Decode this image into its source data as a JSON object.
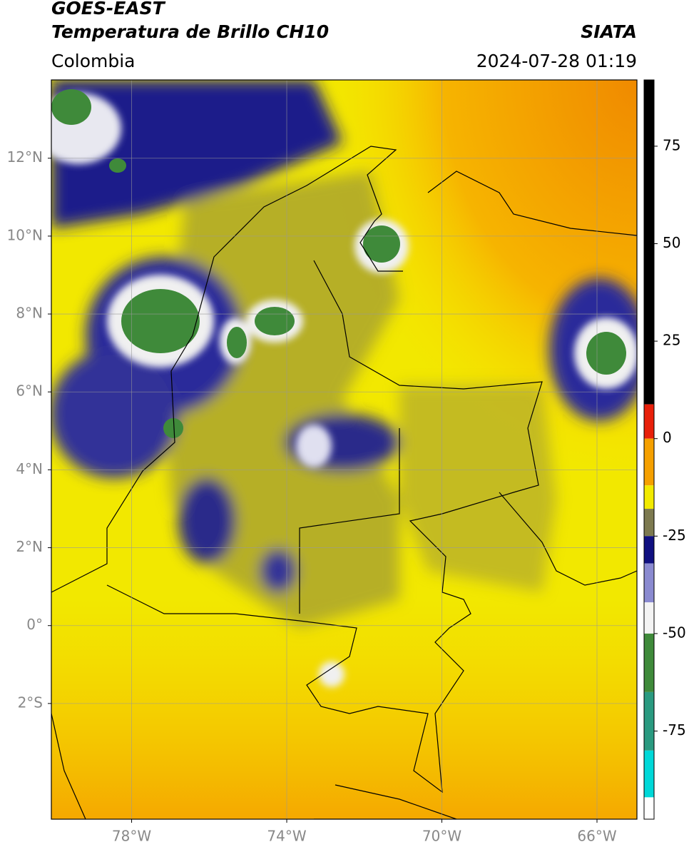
{
  "header": {
    "title": "GOES-EAST",
    "subtitle": "Temperatura de Brillo CH10",
    "source": "SIATA",
    "region": "Colombia",
    "timestamp": "2024-07-28 01:19"
  },
  "map": {
    "xlim": [
      -80.07,
      -64.97
    ],
    "ylim": [
      -4.97,
      14.01
    ],
    "xticks": [
      {
        "value": -78,
        "label": "78°W"
      },
      {
        "value": -74,
        "label": "74°W"
      },
      {
        "value": -70,
        "label": "70°W"
      },
      {
        "value": -66,
        "label": "66°W"
      }
    ],
    "yticks": [
      {
        "value": 12,
        "label": "12°N"
      },
      {
        "value": 10,
        "label": "10°N"
      },
      {
        "value": 8,
        "label": "8°N"
      },
      {
        "value": 6,
        "label": "6°N"
      },
      {
        "value": 4,
        "label": "4°N"
      },
      {
        "value": 2,
        "label": "2°N"
      },
      {
        "value": 0,
        "label": "0°"
      },
      {
        "value": -2,
        "label": "2°S"
      }
    ],
    "grid": true
  },
  "colorbar": {
    "lim": [
      -97.6,
      92
    ],
    "ticks": [
      75,
      50,
      25,
      0,
      -25,
      -50,
      -75
    ],
    "stops": [
      {
        "from": 8.8,
        "to": 92,
        "color": "#000000"
      },
      {
        "from": 0,
        "to": 8.8,
        "color": "#e8200a"
      },
      {
        "from": -12,
        "to": 0,
        "color": "#f5a000"
      },
      {
        "from": -18,
        "to": -12,
        "color": "#f2ea00"
      },
      {
        "from": -25,
        "to": -18,
        "color": "#7d7a50"
      },
      {
        "from": -32,
        "to": -25,
        "color": "#101080"
      },
      {
        "from": -42,
        "to": -32,
        "color": "#8a8ad0"
      },
      {
        "from": -50,
        "to": -42,
        "color": "#f4f4f4"
      },
      {
        "from": -65,
        "to": -50,
        "color": "#3f8a3a"
      },
      {
        "from": -80,
        "to": -65,
        "color": "#2a9a80"
      },
      {
        "from": -92,
        "to": -80,
        "color": "#00d8d8"
      },
      {
        "from": -97.6,
        "to": -92,
        "color": "#ffffff"
      }
    ]
  }
}
